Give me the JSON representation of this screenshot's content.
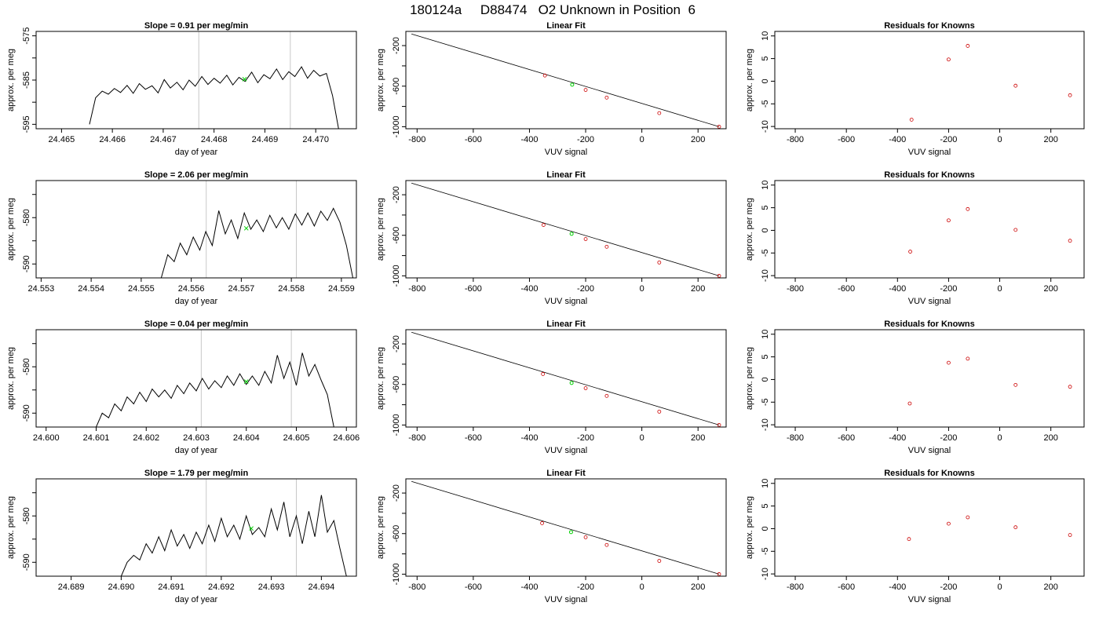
{
  "main_title": "180124a     D88474   O2 Unknown in Position  6",
  "colors": {
    "trace": "#000000",
    "marker_green": "#00d000",
    "known_points": "#cc0000",
    "boundary_lines": "#c8c8c8"
  },
  "chart_data": [
    {
      "type": "line",
      "row": 0,
      "title": "Slope =  0.91  per meg/min",
      "xlabel": "day of year",
      "ylabel": "approx. per meg",
      "xlim": [
        24.4645,
        24.4708
      ],
      "ylim": [
        -596,
        -574
      ],
      "xticks": [
        24.465,
        24.466,
        24.467,
        24.468,
        24.469,
        24.47
      ],
      "xtick_labels": [
        "24.465",
        "24.466",
        "24.467",
        "24.468",
        "24.469",
        "24.470"
      ],
      "yticks": [
        -575,
        -580,
        -585,
        -590,
        -595
      ],
      "ytick_labels": [
        "-575",
        "",
        "-585",
        "",
        "-595"
      ],
      "vlines": [
        24.4677,
        24.4695
      ],
      "marker": [
        24.4686,
        -584.8
      ],
      "series_x": [
        24.46555,
        24.46567,
        24.4658,
        24.46592,
        24.46604,
        24.46616,
        24.46629,
        24.46641,
        24.46653,
        24.46665,
        24.46678,
        24.4669,
        24.46702,
        24.46714,
        24.46727,
        24.46739,
        24.46751,
        24.46763,
        24.46776,
        24.46788,
        24.468,
        24.46812,
        24.46825,
        24.46837,
        24.46849,
        24.46861,
        24.46874,
        24.46886,
        24.46898,
        24.4691,
        24.46923,
        24.46935,
        24.46947,
        24.46959,
        24.46972,
        24.46984,
        24.46996,
        24.47008,
        24.47021,
        24.47033,
        24.47045
      ],
      "series_y": [
        -595.0,
        -589.0,
        -587.5,
        -588.2,
        -586.9,
        -587.8,
        -586.2,
        -588.0,
        -585.8,
        -587.1,
        -586.3,
        -587.9,
        -584.9,
        -586.8,
        -585.5,
        -587.2,
        -585.0,
        -586.4,
        -584.2,
        -586.0,
        -584.6,
        -585.7,
        -583.9,
        -586.1,
        -584.4,
        -585.3,
        -583.2,
        -585.6,
        -583.8,
        -584.7,
        -582.5,
        -584.9,
        -583.1,
        -584.2,
        -582.0,
        -584.6,
        -582.8,
        -584.1,
        -583.5,
        -588.5,
        -596.0
      ]
    },
    {
      "type": "scatter",
      "row": 0,
      "title": "Linear Fit",
      "xlabel": "VUV signal",
      "ylabel": "approx. per meg",
      "xlim": [
        -840,
        300
      ],
      "ylim": [
        -1020,
        -60
      ],
      "xticks": [
        -800,
        -600,
        -400,
        -200,
        0,
        200
      ],
      "xtick_labels": [
        "-800",
        "-600",
        "-400",
        "-200",
        "0",
        "200"
      ],
      "yticks": [
        -200,
        -400,
        -600,
        -800,
        -1000
      ],
      "ytick_labels": [
        "-200",
        "",
        "-600",
        "",
        "-1000"
      ],
      "fit_line": [
        [
          -820,
          -85
        ],
        [
          275,
          -1000
        ]
      ],
      "knowns_x": [
        -345,
        -200,
        -125,
        62,
        275
      ],
      "knowns_y": [
        -495,
        -637,
        -713,
        -866,
        -1000
      ],
      "unknown": [
        -248,
        -585
      ]
    },
    {
      "type": "scatter",
      "row": 0,
      "title": "Residuals for Knowns",
      "xlabel": "VUV signal",
      "ylabel": "approx. per meg",
      "xlim": [
        -880,
        330
      ],
      "ylim": [
        -10.5,
        11
      ],
      "xticks": [
        -800,
        -600,
        -400,
        -200,
        0,
        200
      ],
      "xtick_labels": [
        "-800",
        "-600",
        "-400",
        "-200",
        "0",
        "200"
      ],
      "yticks": [
        10,
        5,
        0,
        -5,
        -10
      ],
      "ytick_labels": [
        "10",
        "5",
        "0",
        "-5",
        "-10"
      ],
      "x": [
        -345,
        -200,
        -125,
        62,
        275
      ],
      "y": [
        -8.5,
        4.8,
        7.8,
        -1.0,
        -3.1
      ]
    },
    {
      "type": "line",
      "row": 1,
      "title": "Slope =  2.06  per meg/min",
      "xlabel": "day of year",
      "ylabel": "approx. per meg",
      "xlim": [
        24.5529,
        24.5593
      ],
      "ylim": [
        -593,
        -572
      ],
      "xticks": [
        24.553,
        24.554,
        24.555,
        24.556,
        24.557,
        24.558,
        24.559
      ],
      "xtick_labels": [
        "24.553",
        "24.554",
        "24.555",
        "24.556",
        "24.557",
        "24.558",
        "24.559"
      ],
      "yticks": [
        -575,
        -580,
        -585,
        -590
      ],
      "ytick_labels": [
        "",
        "-580",
        "",
        "-590"
      ],
      "vlines": [
        24.5563,
        24.5581
      ],
      "marker": [
        24.5571,
        -582.3
      ],
      "series_x": [
        24.5554,
        24.55553,
        24.55566,
        24.55578,
        24.55591,
        24.55604,
        24.55617,
        24.55629,
        24.55642,
        24.55655,
        24.55668,
        24.5568,
        24.55693,
        24.55706,
        24.55719,
        24.55731,
        24.55744,
        24.55757,
        24.5577,
        24.55782,
        24.55795,
        24.55808,
        24.55821,
        24.55833,
        24.55846,
        24.55859,
        24.55872,
        24.55884,
        24.55897,
        24.5591,
        24.55923
      ],
      "series_y": [
        -593.0,
        -588.0,
        -589.5,
        -585.5,
        -588.0,
        -584.2,
        -587.0,
        -583.0,
        -586.0,
        -578.5,
        -583.5,
        -580.5,
        -584.5,
        -579.0,
        -582.5,
        -580.5,
        -583.0,
        -579.5,
        -582.2,
        -580.0,
        -582.5,
        -579.2,
        -581.6,
        -579.0,
        -581.8,
        -578.6,
        -580.6,
        -578.0,
        -581.0,
        -586.0,
        -593.0
      ]
    },
    {
      "type": "scatter",
      "row": 1,
      "title": "Linear Fit",
      "xlabel": "VUV signal",
      "ylabel": "approx. per meg",
      "xlim": [
        -840,
        300
      ],
      "ylim": [
        -1020,
        -60
      ],
      "xticks": [
        -800,
        -600,
        -400,
        -200,
        0,
        200
      ],
      "xtick_labels": [
        "-800",
        "-600",
        "-400",
        "-200",
        "0",
        "200"
      ],
      "yticks": [
        -200,
        -400,
        -600,
        -800,
        -1000
      ],
      "ytick_labels": [
        "-200",
        "",
        "-600",
        "",
        "-1000"
      ],
      "fit_line": [
        [
          -820,
          -85
        ],
        [
          275,
          -1000
        ]
      ],
      "knowns_x": [
        -350,
        -200,
        -125,
        62,
        275
      ],
      "knowns_y": [
        -498,
        -637,
        -713,
        -868,
        -1000
      ],
      "unknown": [
        -250,
        -585
      ]
    },
    {
      "type": "scatter",
      "row": 1,
      "title": "Residuals for Knowns",
      "xlabel": "VUV signal",
      "ylabel": "approx. per meg",
      "xlim": [
        -880,
        330
      ],
      "ylim": [
        -10.5,
        11
      ],
      "xticks": [
        -800,
        -600,
        -400,
        -200,
        0,
        200
      ],
      "xtick_labels": [
        "-800",
        "-600",
        "-400",
        "-200",
        "0",
        "200"
      ],
      "yticks": [
        10,
        5,
        0,
        -5,
        -10
      ],
      "ytick_labels": [
        "10",
        "5",
        "0",
        "-5",
        "-10"
      ],
      "x": [
        -350,
        -200,
        -125,
        62,
        275
      ],
      "y": [
        -4.7,
        2.2,
        4.7,
        0.1,
        -2.3
      ]
    },
    {
      "type": "line",
      "row": 2,
      "title": "Slope =  0.04  per meg/min",
      "xlabel": "day of year",
      "ylabel": "approx. per meg",
      "xlim": [
        24.5998,
        24.6062
      ],
      "ylim": [
        -593,
        -572
      ],
      "xticks": [
        24.6,
        24.601,
        24.602,
        24.603,
        24.604,
        24.605,
        24.606
      ],
      "xtick_labels": [
        "24.600",
        "24.601",
        "24.602",
        "24.603",
        "24.604",
        "24.605",
        "24.606"
      ],
      "yticks": [
        -575,
        -580,
        -585,
        -590
      ],
      "ytick_labels": [
        "",
        "-580",
        "",
        "-590"
      ],
      "vlines": [
        24.6031,
        24.6049
      ],
      "marker": [
        24.604,
        -583.2
      ],
      "series_x": [
        24.601,
        24.60112,
        24.60125,
        24.60137,
        24.6015,
        24.60162,
        24.60175,
        24.60187,
        24.602,
        24.60212,
        24.60225,
        24.60237,
        24.6025,
        24.60262,
        24.60275,
        24.60287,
        24.603,
        24.60312,
        24.60325,
        24.60337,
        24.6035,
        24.60362,
        24.60375,
        24.60387,
        24.604,
        24.60412,
        24.60425,
        24.60437,
        24.6045,
        24.60462,
        24.60475,
        24.60487,
        24.605,
        24.60512,
        24.60525,
        24.60537,
        24.6055,
        24.60562,
        24.60575
      ],
      "series_y": [
        -593.0,
        -590.0,
        -591.0,
        -588.0,
        -589.5,
        -586.5,
        -588.0,
        -585.5,
        -587.5,
        -584.8,
        -586.5,
        -585.0,
        -586.8,
        -584.0,
        -585.8,
        -583.5,
        -585.2,
        -582.5,
        -584.8,
        -583.0,
        -584.5,
        -582.0,
        -584.0,
        -581.5,
        -583.8,
        -582.0,
        -584.0,
        -581.0,
        -583.5,
        -577.5,
        -582.5,
        -579.0,
        -584.0,
        -577.0,
        -582.0,
        -579.5,
        -583.0,
        -586.0,
        -593.0
      ]
    },
    {
      "type": "scatter",
      "row": 2,
      "title": "Linear Fit",
      "xlabel": "VUV signal",
      "ylabel": "approx. per meg",
      "xlim": [
        -840,
        300
      ],
      "ylim": [
        -1020,
        -60
      ],
      "xticks": [
        -800,
        -600,
        -400,
        -200,
        0,
        200
      ],
      "xtick_labels": [
        "-800",
        "-600",
        "-400",
        "-200",
        "0",
        "200"
      ],
      "yticks": [
        -200,
        -400,
        -600,
        -800,
        -1000
      ],
      "ytick_labels": [
        "-200",
        "",
        "-600",
        "",
        "-1000"
      ],
      "fit_line": [
        [
          -820,
          -85
        ],
        [
          275,
          -1000
        ]
      ],
      "knowns_x": [
        -352,
        -200,
        -125,
        62,
        275
      ],
      "knowns_y": [
        -497,
        -637,
        -713,
        -868,
        -1000
      ],
      "unknown": [
        -250,
        -585
      ]
    },
    {
      "type": "scatter",
      "row": 2,
      "title": "Residuals for Knowns",
      "xlabel": "VUV signal",
      "ylabel": "approx. per meg",
      "xlim": [
        -880,
        330
      ],
      "ylim": [
        -10.5,
        11
      ],
      "xticks": [
        -800,
        -600,
        -400,
        -200,
        0,
        200
      ],
      "xtick_labels": [
        "-800",
        "-600",
        "-400",
        "-200",
        "0",
        "200"
      ],
      "yticks": [
        10,
        5,
        0,
        -5,
        -10
      ],
      "ytick_labels": [
        "10",
        "5",
        "0",
        "-5",
        "-10"
      ],
      "x": [
        -352,
        -200,
        -125,
        62,
        275
      ],
      "y": [
        -5.3,
        3.7,
        4.6,
        -1.2,
        -1.6
      ]
    },
    {
      "type": "line",
      "row": 3,
      "title": "Slope =  1.79  per meg/min",
      "xlabel": "day of year",
      "ylabel": "approx. per meg",
      "xlim": [
        24.6883,
        24.6947
      ],
      "ylim": [
        -593,
        -572
      ],
      "xticks": [
        24.689,
        24.69,
        24.691,
        24.692,
        24.693,
        24.694
      ],
      "xtick_labels": [
        "24.689",
        "24.690",
        "24.691",
        "24.692",
        "24.693",
        "24.694"
      ],
      "yticks": [
        -575,
        -580,
        -585,
        -590
      ],
      "ytick_labels": [
        "",
        "-580",
        "",
        "-590"
      ],
      "vlines": [
        24.6917,
        24.6935
      ],
      "marker": [
        24.6926,
        -582.7
      ],
      "series_x": [
        24.69,
        24.69012,
        24.69025,
        24.69037,
        24.6905,
        24.69062,
        24.69075,
        24.69087,
        24.691,
        24.69112,
        24.69125,
        24.69137,
        24.6915,
        24.69162,
        24.69175,
        24.69187,
        24.692,
        24.69212,
        24.69225,
        24.69237,
        24.6925,
        24.69262,
        24.69275,
        24.69287,
        24.693,
        24.69312,
        24.69325,
        24.69337,
        24.6935,
        24.69362,
        24.69375,
        24.69387,
        24.694,
        24.69412,
        24.69425,
        24.69437,
        24.6945
      ],
      "series_y": [
        -593.0,
        -590.0,
        -588.5,
        -589.5,
        -586.0,
        -588.0,
        -584.5,
        -587.5,
        -583.0,
        -586.5,
        -584.0,
        -587.0,
        -583.5,
        -586.0,
        -582.0,
        -585.5,
        -580.5,
        -584.5,
        -582.0,
        -585.0,
        -580.0,
        -584.0,
        -582.5,
        -584.5,
        -578.5,
        -583.0,
        -577.0,
        -584.5,
        -580.0,
        -586.0,
        -579.0,
        -584.5,
        -575.5,
        -583.5,
        -581.0,
        -587.0,
        -593.0
      ]
    },
    {
      "type": "scatter",
      "row": 3,
      "title": "Linear Fit",
      "xlabel": "VUV signal",
      "ylabel": "approx. per meg",
      "xlim": [
        -840,
        300
      ],
      "ylim": [
        -1020,
        -60
      ],
      "xticks": [
        -800,
        -600,
        -400,
        -200,
        0,
        200
      ],
      "xtick_labels": [
        "-800",
        "-600",
        "-400",
        "-200",
        "0",
        "200"
      ],
      "yticks": [
        -200,
        -400,
        -600,
        -800,
        -1000
      ],
      "ytick_labels": [
        "-200",
        "",
        "-600",
        "",
        "-1000"
      ],
      "fit_line": [
        [
          -820,
          -85
        ],
        [
          275,
          -1000
        ]
      ],
      "knowns_x": [
        -355,
        -200,
        -125,
        62,
        275
      ],
      "knowns_y": [
        -497,
        -636,
        -712,
        -869,
        -1000
      ],
      "unknown": [
        -252,
        -585
      ]
    },
    {
      "type": "scatter",
      "row": 3,
      "title": "Residuals for Knowns",
      "xlabel": "VUV signal",
      "ylabel": "approx. per meg",
      "xlim": [
        -880,
        330
      ],
      "ylim": [
        -10.5,
        11
      ],
      "xticks": [
        -800,
        -600,
        -400,
        -200,
        0,
        200
      ],
      "xtick_labels": [
        "-800",
        "-600",
        "-400",
        "-200",
        "0",
        "200"
      ],
      "yticks": [
        10,
        5,
        0,
        -5,
        -10
      ],
      "ytick_labels": [
        "10",
        "5",
        "0",
        "-5",
        "-10"
      ],
      "x": [
        -355,
        -200,
        -125,
        62,
        275
      ],
      "y": [
        -2.3,
        1.1,
        2.5,
        0.3,
        -1.4
      ]
    }
  ]
}
